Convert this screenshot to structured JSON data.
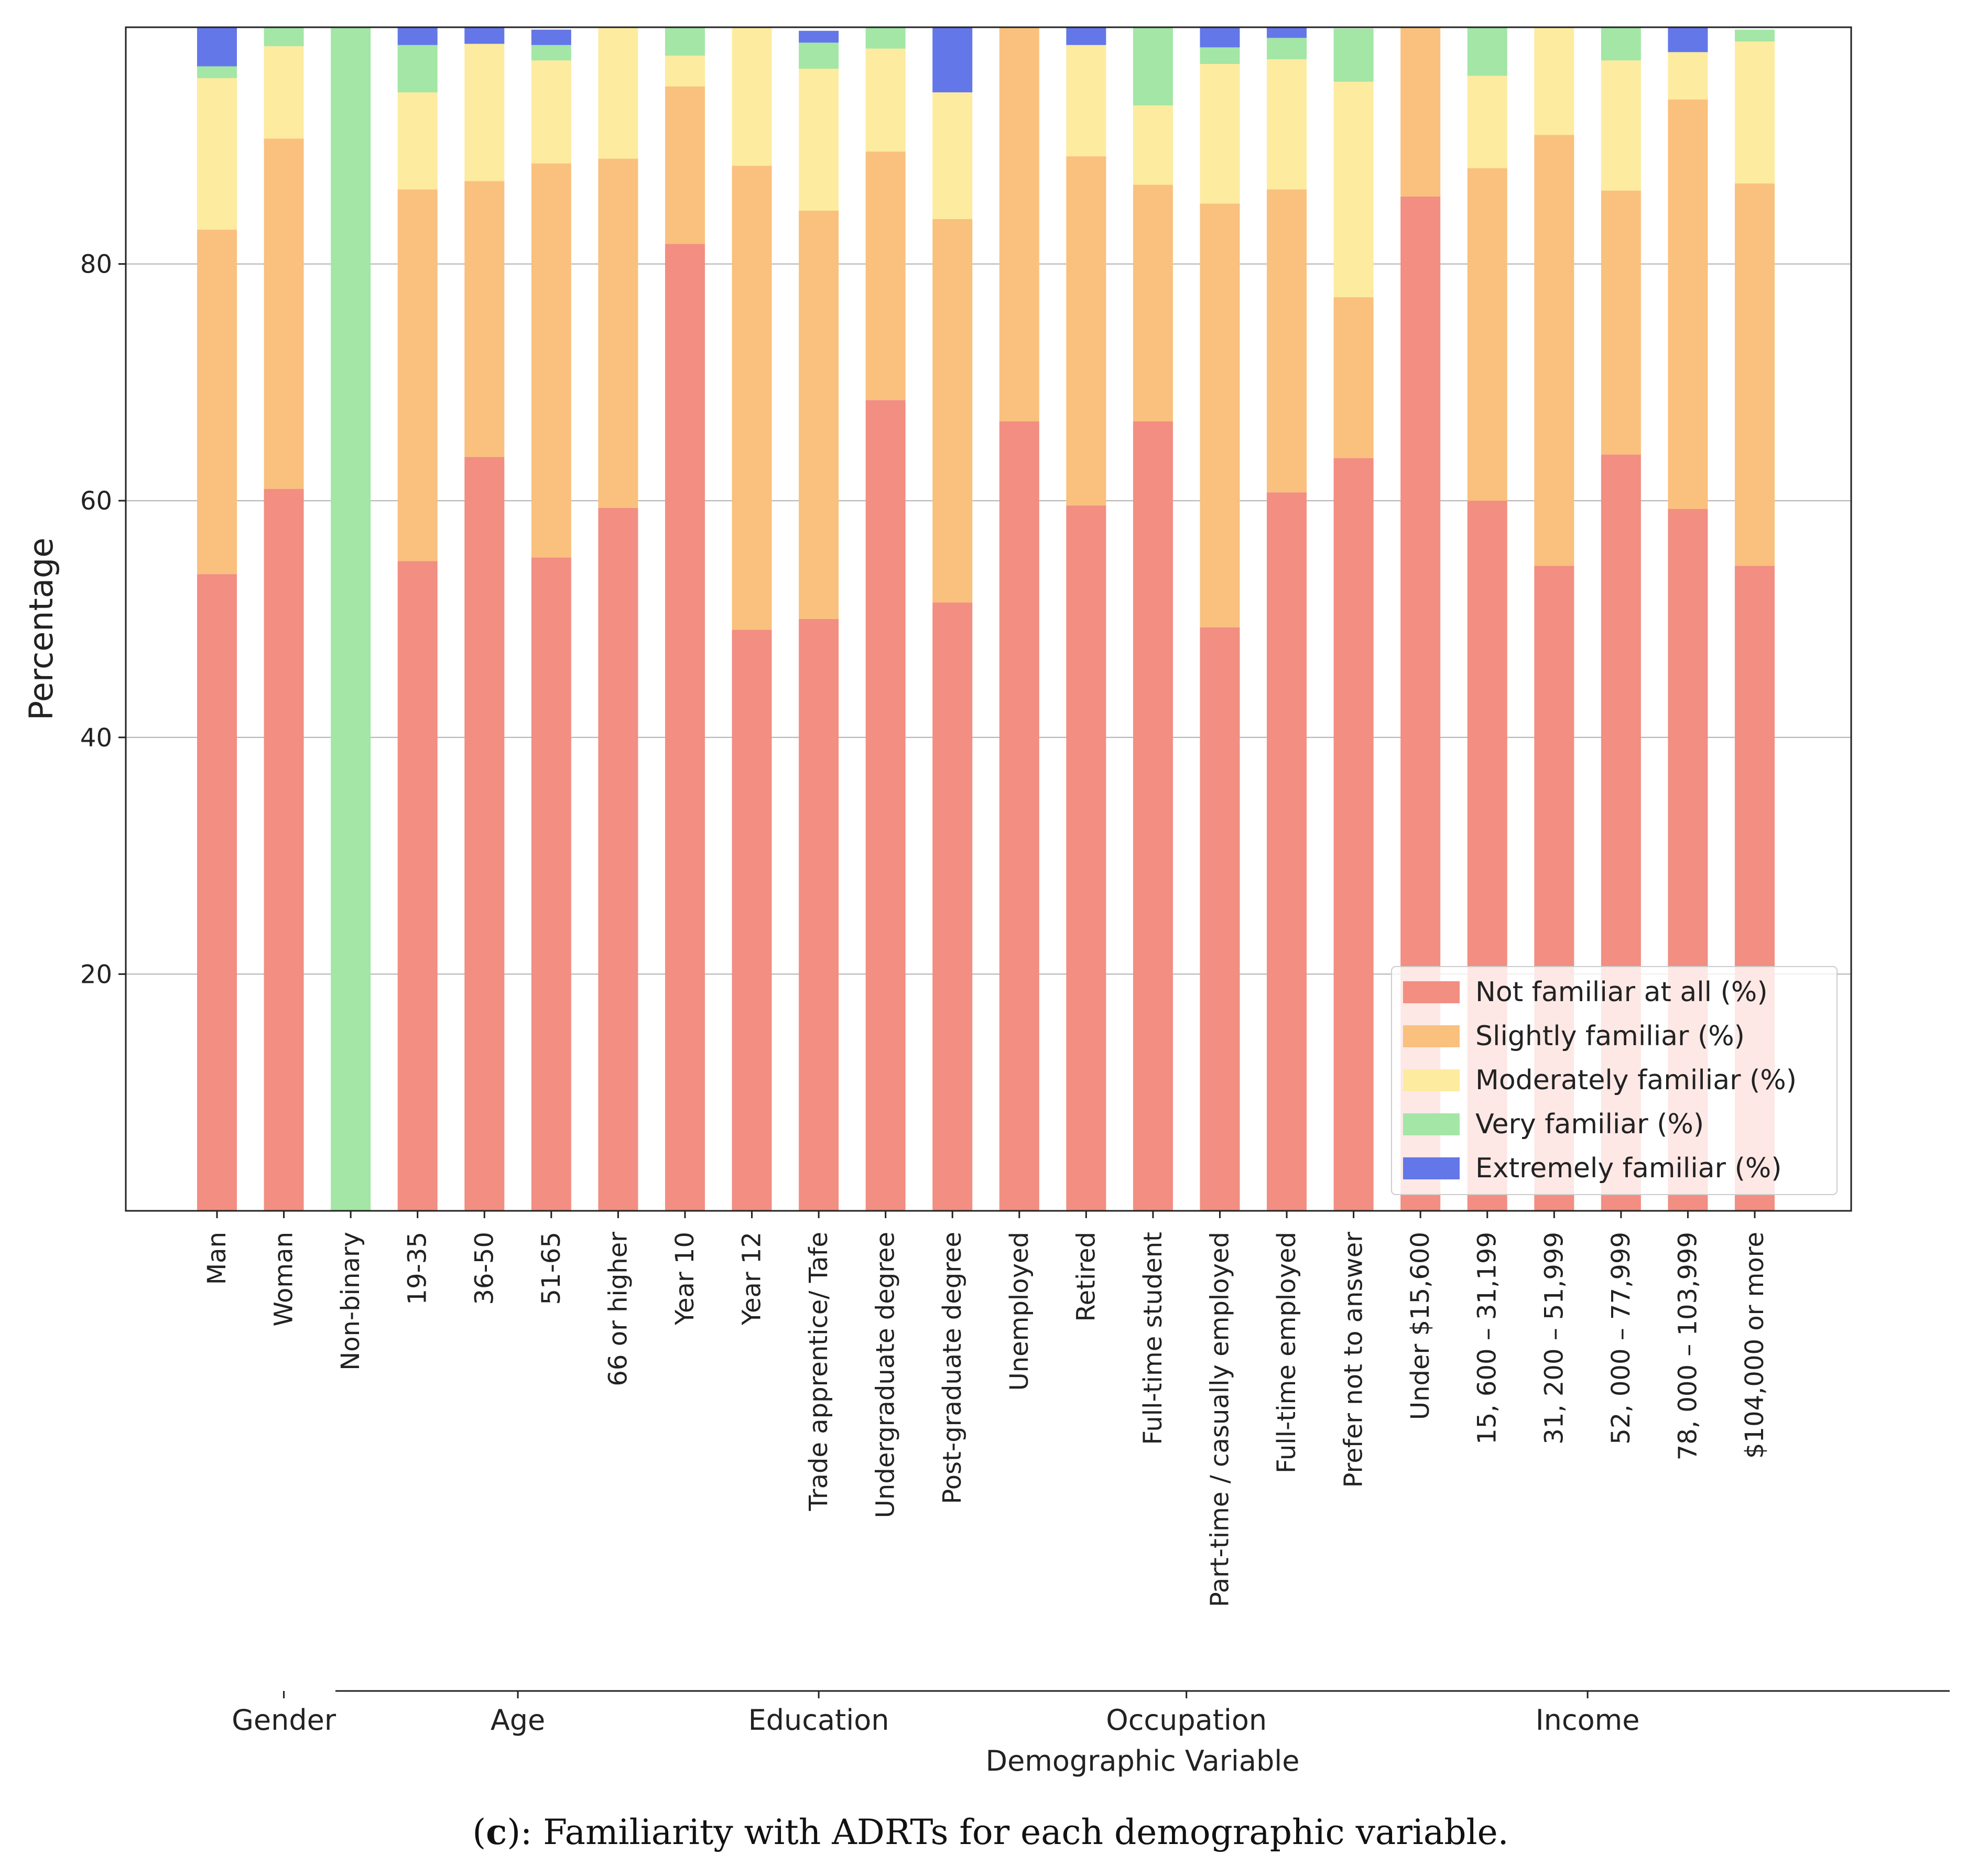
{
  "chart_data": {
    "type": "bar",
    "stacked": true,
    "title": "",
    "xlabel": "Demographic Variable",
    "ylabel": "Percentage",
    "ylim": [
      0,
      100
    ],
    "yticks": [
      20,
      40,
      60,
      80
    ],
    "grid": true,
    "legend_position": "lower-right",
    "categories": [
      "Man",
      "Woman",
      "Non-binary",
      "19-35",
      "36-50",
      "51-65",
      "66 or higher",
      "Year 10",
      "Year 12",
      "Trade apprentice/ Tafe",
      "Undergraduate degree",
      "Post-graduate degree",
      "Unemployed",
      "Retired",
      "Full-time student",
      "Part-time / casually employed",
      "Full-time employed",
      "Prefer not to answer",
      "Under $15,600",
      "15, 600 – 31,199",
      "31, 200 – 51,999",
      "52, 000 – 77,999",
      "78, 000 – 103,999",
      "$104,000 or more"
    ],
    "series": [
      {
        "name": "Not familiar at all (%)",
        "color": "#f28e82",
        "values": [
          53.8,
          61.0,
          0,
          54.9,
          63.7,
          55.2,
          59.4,
          81.7,
          49.1,
          50.0,
          68.5,
          51.4,
          66.7,
          59.6,
          66.7,
          49.3,
          60.7,
          63.6,
          85.7,
          60.0,
          54.5,
          63.9,
          59.3,
          54.5
        ]
      },
      {
        "name": "Slightly familiar (%)",
        "color": "#f9c17d",
        "values": [
          29.1,
          29.6,
          0,
          31.4,
          23.3,
          33.3,
          29.5,
          13.3,
          39.2,
          34.5,
          21.0,
          32.4,
          33.3,
          29.5,
          20.0,
          35.8,
          25.6,
          13.6,
          14.3,
          28.1,
          36.4,
          22.3,
          34.6,
          32.3
        ]
      },
      {
        "name": "Moderately familiar (%)",
        "color": "#fdeba0",
        "values": [
          12.8,
          7.8,
          0,
          8.2,
          11.6,
          8.7,
          11.1,
          2.6,
          11.7,
          12.0,
          8.7,
          10.7,
          0,
          9.4,
          6.7,
          11.8,
          11.0,
          18.2,
          0,
          7.8,
          9.1,
          11.0,
          4.0,
          12.0
        ]
      },
      {
        "name": "Very familiar (%)",
        "color": "#a3e6a6",
        "values": [
          1.0,
          1.6,
          100,
          4.0,
          0,
          1.3,
          0,
          2.4,
          0,
          2.2,
          1.8,
          0,
          0,
          0,
          6.6,
          1.4,
          1.8,
          4.5,
          0,
          4.1,
          0,
          2.8,
          0,
          1.0
        ]
      },
      {
        "name": "Extremely familiar (%)",
        "color": "#6377e8",
        "values": [
          3.3,
          0,
          0,
          1.5,
          1.4,
          1.3,
          0,
          0,
          0,
          1.0,
          0,
          5.5,
          0,
          1.5,
          0,
          1.7,
          0.9,
          0,
          0,
          0,
          0,
          0,
          2.1,
          0
        ]
      }
    ],
    "groups": [
      {
        "name": "Gender",
        "start": 0,
        "end": 2
      },
      {
        "name": "Age",
        "start": 3,
        "end": 6
      },
      {
        "name": "Education",
        "start": 7,
        "end": 11
      },
      {
        "name": "Occupation",
        "start": 12,
        "end": 17
      },
      {
        "name": "Income",
        "start": 18,
        "end": 23
      }
    ]
  },
  "caption": {
    "prefix": "(",
    "letter": "c",
    "suffix": "): Familiarity with ADRTs for each demographic variable."
  }
}
